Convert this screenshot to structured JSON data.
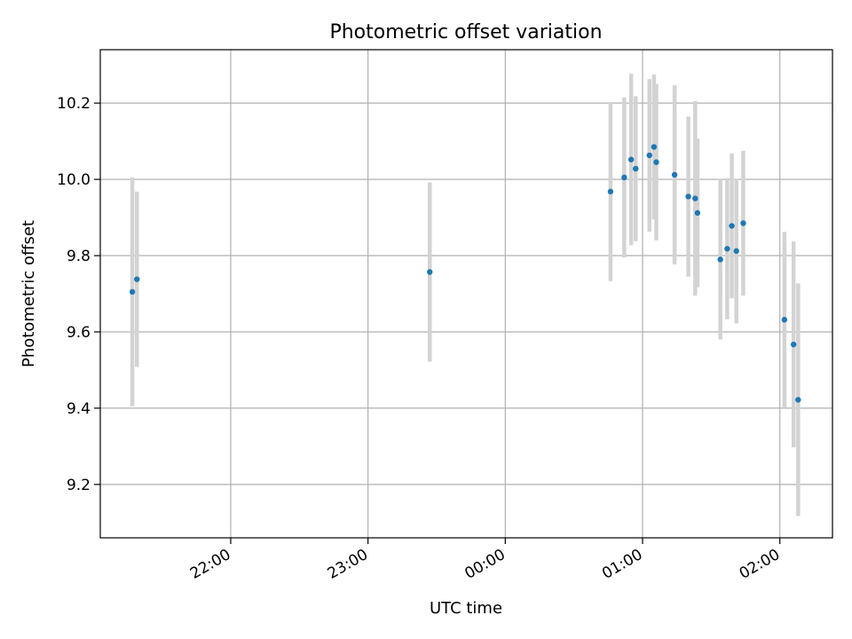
{
  "chart_data": {
    "type": "scatter",
    "title": "Photometric offset variation",
    "xlabel": "UTC time",
    "ylabel": "Photometric offset",
    "x_axis": {
      "kind": "time",
      "tick_labels": [
        "22:00",
        "23:00",
        "00:00",
        "01:00",
        "02:00"
      ],
      "range": [
        "21:03",
        "02:23"
      ]
    },
    "y_axis": {
      "ticks": [
        9.2,
        9.4,
        9.6,
        9.8,
        10.0,
        10.2
      ],
      "tick_labels": [
        "9.2",
        "9.4",
        "9.6",
        "9.8",
        "10.0",
        "10.2"
      ],
      "ylim": [
        9.06,
        10.34
      ]
    },
    "grid": true,
    "marker_color": "#1f77b4",
    "errorbar_color": "#d3d3d3",
    "series": [
      {
        "points": [
          {
            "x": "21:17",
            "y": 9.705,
            "yerr": 0.3
          },
          {
            "x": "21:19",
            "y": 9.738,
            "yerr": 0.23
          },
          {
            "x": "23:27",
            "y": 9.757,
            "yerr": 0.235
          },
          {
            "x": "00:46",
            "y": 9.968,
            "yerr": 0.235
          },
          {
            "x": "00:52",
            "y": 10.005,
            "yerr": 0.21
          },
          {
            "x": "00:55",
            "y": 10.052,
            "yerr": 0.225
          },
          {
            "x": "00:57",
            "y": 10.028,
            "yerr": 0.19
          },
          {
            "x": "01:03",
            "y": 10.063,
            "yerr": 0.2
          },
          {
            "x": "01:05",
            "y": 10.085,
            "yerr": 0.19
          },
          {
            "x": "01:06",
            "y": 10.045,
            "yerr": 0.205
          },
          {
            "x": "01:14",
            "y": 10.012,
            "yerr": 0.235
          },
          {
            "x": "01:20",
            "y": 9.955,
            "yerr": 0.21
          },
          {
            "x": "01:23",
            "y": 9.95,
            "yerr": 0.255
          },
          {
            "x": "01:24",
            "y": 9.912,
            "yerr": 0.195
          },
          {
            "x": "01:34",
            "y": 9.79,
            "yerr": 0.21
          },
          {
            "x": "01:37",
            "y": 9.818,
            "yerr": 0.185
          },
          {
            "x": "01:39",
            "y": 9.878,
            "yerr": 0.19
          },
          {
            "x": "01:41",
            "y": 9.812,
            "yerr": 0.19
          },
          {
            "x": "01:44",
            "y": 9.885,
            "yerr": 0.19
          },
          {
            "x": "02:02",
            "y": 9.632,
            "yerr": 0.23
          },
          {
            "x": "02:06",
            "y": 9.567,
            "yerr": 0.27
          },
          {
            "x": "02:08",
            "y": 9.422,
            "yerr": 0.305
          }
        ]
      }
    ]
  }
}
